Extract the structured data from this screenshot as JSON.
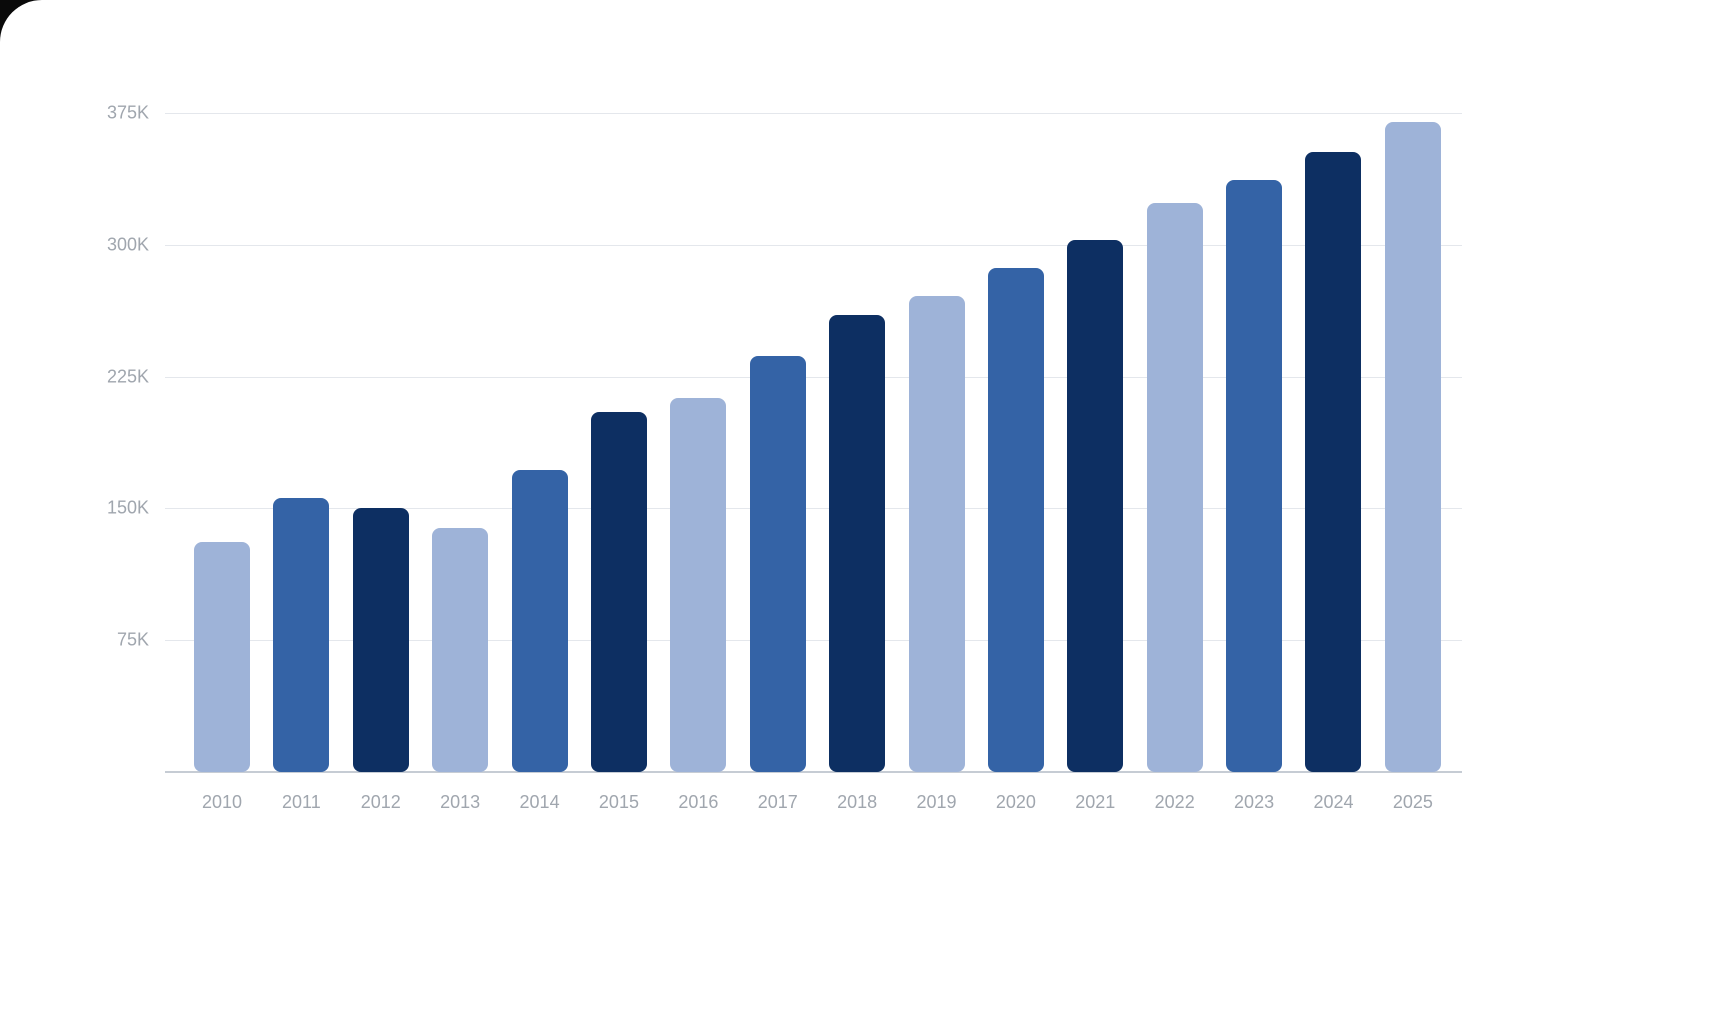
{
  "chart_data": {
    "type": "bar",
    "title": "",
    "xlabel": "",
    "ylabel": "",
    "categories": [
      "2010",
      "2011",
      "2012",
      "2013",
      "2014",
      "2015",
      "2016",
      "2017",
      "2018",
      "2019",
      "2020",
      "2021",
      "2022",
      "2023",
      "2024",
      "2025"
    ],
    "values": [
      131000,
      156000,
      150000,
      139000,
      172000,
      205000,
      213000,
      237000,
      260000,
      271000,
      287000,
      303000,
      324000,
      337000,
      353000,
      370000
    ],
    "y_ticks": [
      "75K",
      "150K",
      "225K",
      "300K",
      "375K"
    ],
    "y_tick_values": [
      75000,
      150000,
      225000,
      300000,
      375000
    ],
    "ylim": [
      0,
      375000
    ],
    "grid": true,
    "legend": "none",
    "bar_colors_cycle": [
      "#9eb3d8",
      "#3463a6",
      "#0d2f62"
    ],
    "axis_label_color": "#a0a6ae",
    "gridline_color": "#e4e7ec",
    "baseline_color": "#c6ccd4",
    "background_color": "#ffffff"
  }
}
